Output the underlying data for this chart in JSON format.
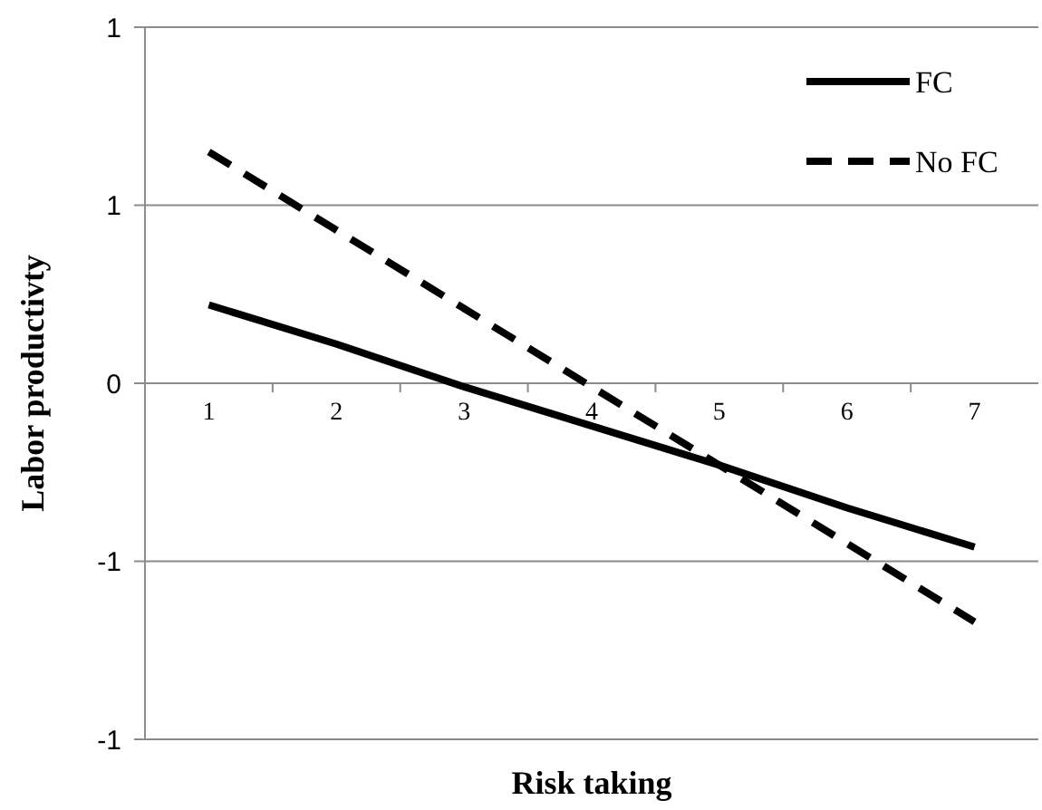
{
  "chart_data": {
    "type": "line",
    "xlabel": "Risk taking",
    "ylabel": "Labor productivty",
    "categories": [
      "1",
      "2",
      "3",
      "4",
      "5",
      "6",
      "7"
    ],
    "series": [
      {
        "name": "FC",
        "color": "#000000",
        "line_style": "solid",
        "values": [
          0.22,
          0.11,
          -0.01,
          -0.12,
          -0.23,
          -0.35,
          -0.46
        ]
      },
      {
        "name": "No FC",
        "color": "#000000",
        "line_style": "dashed",
        "values": [
          0.65,
          0.43,
          0.21,
          -0.01,
          -0.23,
          -0.45,
          -0.67
        ]
      }
    ],
    "ylim": [
      -1,
      1
    ],
    "yticks": [
      1,
      {
        "value": 0.5,
        "label": "1"
      },
      0,
      {
        "value": -0.5,
        "label": "-1"
      },
      -1
    ],
    "grid": "y",
    "legend": "top right",
    "marker": "none"
  }
}
